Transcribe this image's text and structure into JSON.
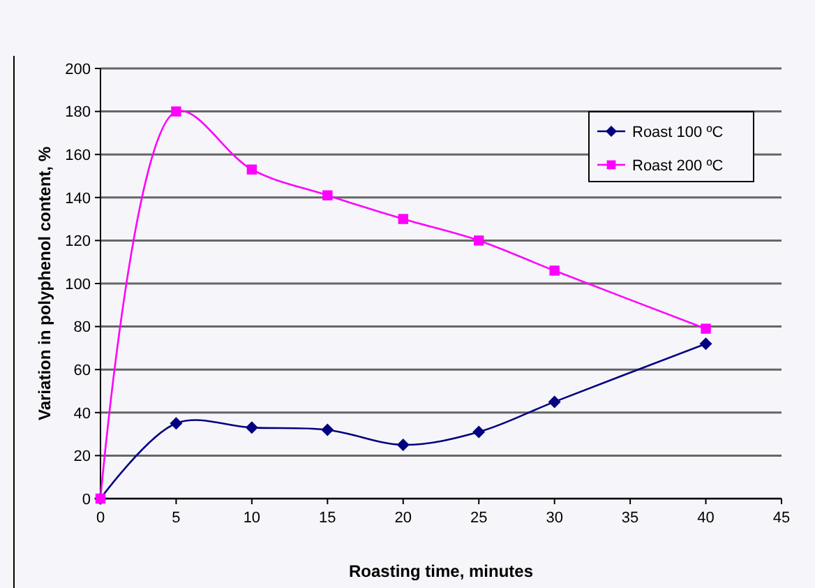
{
  "chart_data": {
    "type": "line",
    "xlabel": "Roasting time, minutes",
    "ylabel": "Variation in polyphenol content, %",
    "x": [
      0,
      5,
      10,
      15,
      20,
      25,
      30,
      40
    ],
    "series": [
      {
        "name": "Roast 100 ºC",
        "color": "#000080",
        "marker": "diamond",
        "values": [
          0,
          35,
          33,
          32,
          25,
          31,
          45,
          72
        ]
      },
      {
        "name": "Roast 200 ºC",
        "color": "#ff00ff",
        "marker": "square",
        "values": [
          0,
          180,
          153,
          141,
          130,
          120,
          106,
          79
        ]
      }
    ],
    "xlim": [
      0,
      45
    ],
    "xticks": [
      0,
      5,
      10,
      15,
      20,
      25,
      30,
      35,
      40,
      45
    ],
    "ylim": [
      0,
      200
    ],
    "yticks": [
      0,
      20,
      40,
      60,
      80,
      100,
      120,
      140,
      160,
      180,
      200
    ],
    "grid": "y",
    "legend": "top right"
  }
}
